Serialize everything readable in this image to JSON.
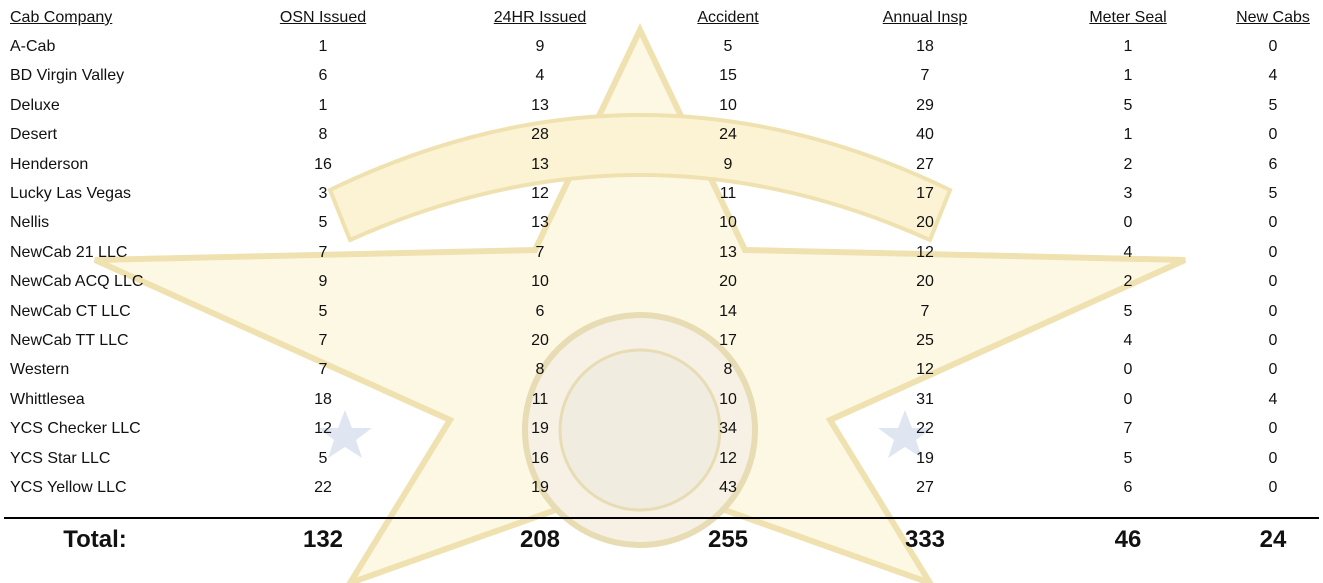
{
  "table": {
    "headers": [
      "Cab Company",
      "OSN Issued",
      "24HR Issued",
      "Accident",
      "Annual Insp",
      "Meter Seal",
      "New Cabs"
    ],
    "rows": [
      [
        "A-Cab",
        1,
        9,
        5,
        18,
        1,
        0
      ],
      [
        "BD Virgin Valley",
        6,
        4,
        15,
        7,
        1,
        4
      ],
      [
        "Deluxe",
        1,
        13,
        10,
        29,
        5,
        5
      ],
      [
        "Desert",
        8,
        28,
        24,
        40,
        1,
        0
      ],
      [
        "Henderson",
        16,
        13,
        9,
        27,
        2,
        6
      ],
      [
        "Lucky Las Vegas",
        3,
        12,
        11,
        17,
        3,
        5
      ],
      [
        "Nellis",
        5,
        13,
        10,
        20,
        0,
        0
      ],
      [
        "NewCab 21 LLC",
        7,
        7,
        13,
        12,
        4,
        0
      ],
      [
        "NewCab ACQ LLC",
        9,
        10,
        20,
        20,
        2,
        0
      ],
      [
        "NewCab CT LLC",
        5,
        6,
        14,
        7,
        5,
        0
      ],
      [
        "NewCab TT LLC",
        7,
        20,
        17,
        25,
        4,
        0
      ],
      [
        "Western",
        7,
        8,
        8,
        12,
        0,
        0
      ],
      [
        "Whittlesea",
        18,
        11,
        10,
        31,
        0,
        4
      ],
      [
        "YCS Checker LLC",
        12,
        19,
        34,
        22,
        7,
        0
      ],
      [
        "YCS Star LLC",
        5,
        16,
        12,
        19,
        5,
        0
      ],
      [
        "YCS Yellow LLC",
        22,
        19,
        43,
        27,
        6,
        0
      ]
    ],
    "total": [
      "Total:",
      132,
      208,
      255,
      333,
      46,
      24
    ]
  }
}
